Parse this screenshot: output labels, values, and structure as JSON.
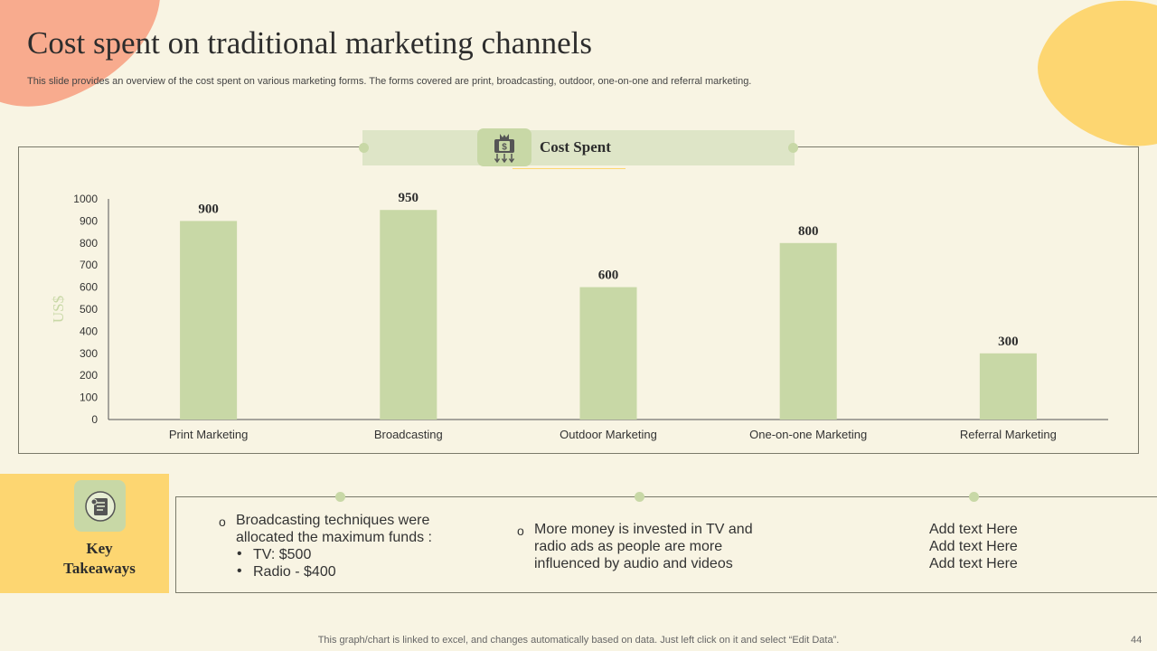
{
  "slide": {
    "title": "Cost spent on traditional marketing channels",
    "subtitle": "This slide provides an overview of the cost spent on various marketing forms. The forms covered are print, broadcasting, outdoor, one-on-one and referral marketing.",
    "section_label": "Cost Spent",
    "footer": "This graph/chart is linked to excel,  and changes automatically based on data. Just left click on it and select “Edit Data”.",
    "page_number": "44",
    "icons": [
      "money-bag-icon",
      "checklist-icon"
    ]
  },
  "takeaways": {
    "heading_line1": "Key",
    "heading_line2": "Takeaways",
    "col1_marker": "o",
    "col1_line1": "Broadcasting techniques were",
    "col1_line2": "allocated the maximum funds :",
    "col1_bullet_marker": "•",
    "col1_bullet1": "TV: $500",
    "col1_bullet2": "Radio - $400",
    "col2_marker": "o",
    "col2_line1": "More money is invested in TV and",
    "col2_line2": "radio ads as people are more",
    "col2_line3": "influenced by audio and videos",
    "col3_line1": "Add text Here",
    "col3_line2": "Add text Here",
    "col3_line3": "Add text Here"
  },
  "chart_data": {
    "type": "bar",
    "categories": [
      "Print Marketing",
      "Broadcasting",
      "Outdoor Marketing",
      "One-on-one Marketing",
      "Referral Marketing"
    ],
    "values": [
      900,
      950,
      600,
      800,
      300
    ],
    "data_labels": [
      "900",
      "950",
      "600",
      "800",
      "300"
    ],
    "title": "Cost Spent",
    "xlabel": "",
    "ylabel": "US$",
    "ylim": [
      0,
      1000
    ],
    "yticks": [
      0,
      100,
      200,
      300,
      400,
      500,
      600,
      700,
      800,
      900,
      1000
    ],
    "grid": false,
    "legend": "none",
    "bar_color": "#c8d8a6",
    "ylabel_color": "#c8d8a6"
  }
}
